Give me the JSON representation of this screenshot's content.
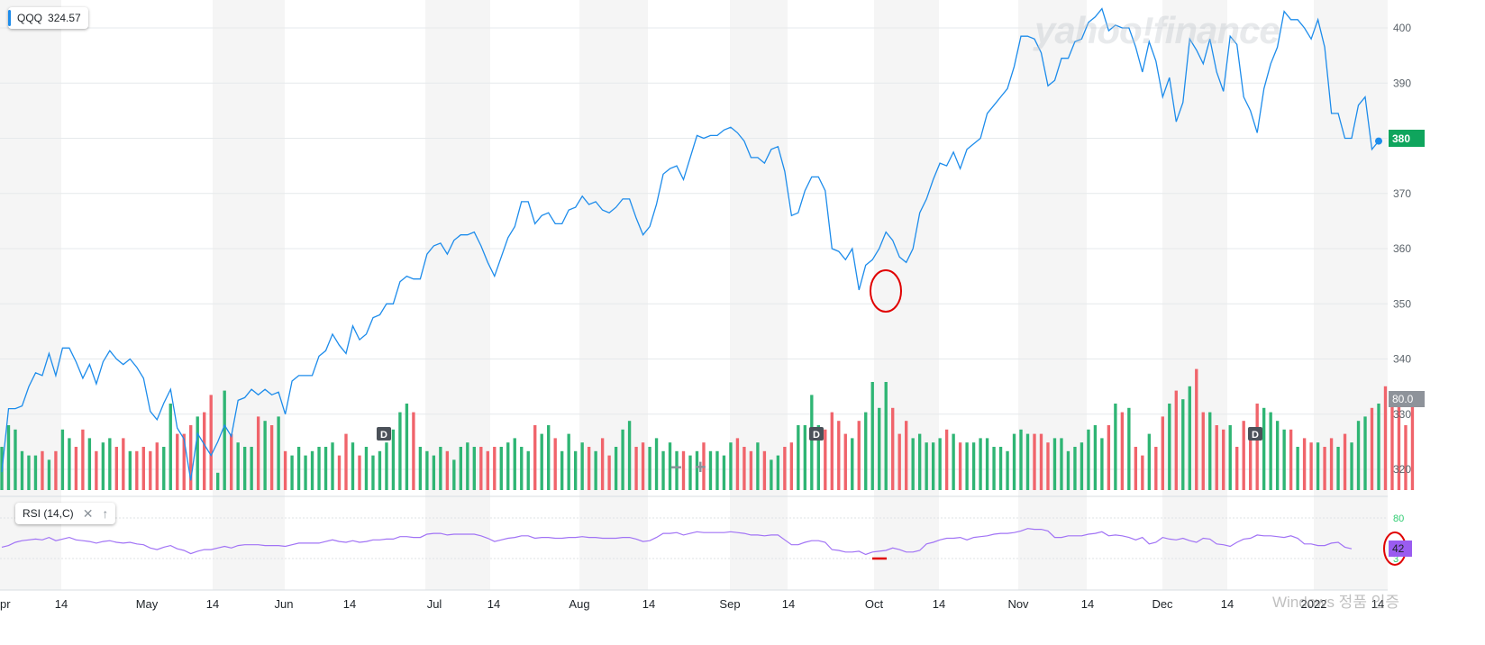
{
  "ticker": {
    "symbol": "QQQ",
    "value": "324.57"
  },
  "rsi_label": "RSI (14,C)",
  "watermark": "yahoo!finance",
  "last_price_label": "380",
  "volume_level_label": "80.0",
  "rsi_last_label": "42",
  "windows_watermark": "Windows 정품 인증",
  "icons": {
    "close": "close-icon",
    "up_arrow": "arrow-up-icon",
    "zoom_out": "minus-icon",
    "zoom_in": "plus-icon"
  },
  "colors": {
    "price_line": "#1d8ceb",
    "vol_up": "#2fb574",
    "vol_down": "#f0646b",
    "rsi_line": "#a173f5",
    "rsi_band": "#2ecc71",
    "last_price_bg": "#0fa55d",
    "annotation": "#e00000"
  },
  "chart_data": {
    "type": "line",
    "title": "",
    "xlabel": "",
    "ylabel": "",
    "ylim": [
      318,
      404
    ],
    "y_ticks": [
      320,
      330,
      340,
      350,
      360,
      370,
      380,
      390,
      400
    ],
    "x_ticks": [
      "pr",
      "14",
      "May",
      "14",
      "Jun",
      "14",
      "Jul",
      "14",
      "Aug",
      "14",
      "Sep",
      "14",
      "Oct",
      "14",
      "Nov",
      "14",
      "Dec",
      "14",
      "2022",
      "14"
    ],
    "series": [
      {
        "values": [
          319.5,
          331,
          331,
          331.5,
          335,
          337.5,
          337,
          341,
          337,
          342,
          342,
          339.5,
          336.5,
          339,
          335.5,
          339.5,
          341.5,
          340,
          339,
          340,
          338.5,
          336.5,
          330.5,
          329,
          332,
          334.5,
          327.5,
          325.5,
          318,
          326.5,
          324.5,
          322.5,
          325,
          328,
          326,
          332.5,
          333,
          334.5,
          333.5,
          334.5,
          333.5,
          334,
          330,
          336,
          337,
          337,
          337,
          340.5,
          341.5,
          344.5,
          342.5,
          341,
          346,
          343.5,
          344.5,
          347.5,
          348,
          350,
          350,
          354,
          355,
          354.5,
          354.5,
          359,
          360.5,
          361,
          359,
          361.5,
          362.5,
          362.5,
          363,
          360.5,
          357.5,
          355,
          358.5,
          362,
          364,
          368.5,
          368.5,
          364.5,
          366,
          366.5,
          364.5,
          364.5,
          367,
          367.5,
          369.5,
          368,
          368.5,
          367,
          366.5,
          367.5,
          369,
          369,
          365.5,
          362.5,
          364,
          368,
          373.5,
          374.5,
          375,
          372.5,
          376.5,
          380.5,
          380,
          380.5,
          380.5,
          381.5,
          382,
          381,
          379.5,
          376.5,
          376.5,
          375.5,
          378,
          378.5,
          374,
          366,
          366.5,
          370.5,
          373,
          373,
          370.5,
          360,
          359.5,
          358,
          360,
          352.5,
          357,
          358,
          360,
          363,
          361.5,
          358.5,
          357.5,
          360,
          366.5,
          369,
          372.5,
          375.5,
          375,
          377.5,
          374.5,
          378,
          379,
          380,
          384.5,
          386,
          387.5,
          389,
          393,
          398.5,
          398.5,
          398,
          395.5,
          389.5,
          390.5,
          394.5,
          394.5,
          397.5,
          398,
          401,
          402,
          403.5,
          399.5,
          400.5,
          400,
          400,
          396.5,
          392,
          397.5,
          394,
          387.5,
          391,
          383,
          386.5,
          398,
          396,
          393.5,
          398,
          392,
          388.5,
          398.5,
          397,
          387.5,
          385,
          381,
          389,
          393.5,
          396.5,
          403,
          401.5,
          401.5,
          400,
          398,
          401.5,
          396.5,
          384.5,
          384.5,
          380,
          380,
          386,
          387.5,
          378,
          379.5
        ]
      },
      {
        "name": "Volume",
        "values": [
          10,
          15,
          14,
          9,
          8,
          8,
          9,
          7,
          9,
          14,
          12,
          10,
          14,
          12,
          9,
          11,
          12,
          10,
          12,
          9,
          9,
          10,
          9,
          11,
          10,
          20,
          13,
          13,
          15,
          17,
          18,
          22,
          4,
          23,
          13,
          11,
          10,
          10,
          17,
          16,
          15,
          17,
          9,
          8,
          10,
          8,
          9,
          10,
          10,
          11,
          8,
          13,
          11,
          8,
          10,
          8,
          9,
          11,
          14,
          18,
          20,
          18,
          10,
          9,
          8,
          10,
          9,
          7,
          10,
          11,
          10,
          10,
          9,
          10,
          10,
          11,
          12,
          10,
          9,
          15,
          13,
          15,
          12,
          9,
          13,
          9,
          11,
          10,
          9,
          12,
          8,
          10,
          14,
          16,
          10,
          11,
          10,
          12,
          9,
          11,
          9,
          9,
          8,
          9,
          11,
          9,
          9,
          8,
          11,
          12,
          10,
          9,
          11,
          9,
          7,
          8,
          10,
          11,
          15,
          15,
          22,
          15,
          14,
          18,
          16,
          13,
          12,
          16,
          18,
          25,
          19,
          25,
          19,
          13,
          16,
          12,
          13,
          11,
          11,
          12,
          14,
          13,
          11,
          11,
          11,
          12,
          12,
          10,
          10,
          9,
          13,
          14,
          13,
          13,
          13,
          11,
          12,
          12,
          9,
          10,
          11,
          14,
          15,
          12,
          15,
          20,
          18,
          19,
          10,
          8,
          13,
          10,
          17,
          20,
          23,
          21,
          24,
          28,
          18,
          18,
          15,
          14,
          15,
          10,
          16,
          14,
          20,
          19,
          18,
          16,
          14,
          14,
          10,
          12,
          11,
          11,
          10,
          12,
          10,
          13,
          11,
          16,
          17,
          19,
          20,
          24,
          20,
          20,
          15,
          20
        ]
      },
      {
        "name": "RSI (14,C)",
        "values": [
          44,
          46,
          50,
          52,
          53,
          54,
          53,
          56,
          52,
          54,
          56,
          53,
          52,
          51,
          49,
          51,
          52,
          50,
          49,
          50,
          48,
          47,
          43,
          41,
          44,
          46,
          42,
          40,
          36,
          39,
          41,
          41,
          43,
          45,
          43,
          46,
          47,
          47,
          47,
          46,
          46,
          46,
          45,
          47,
          49,
          49,
          49,
          49,
          51,
          53,
          51,
          50,
          52,
          50,
          51,
          53,
          53,
          54,
          54,
          57,
          57,
          56,
          56,
          60,
          61,
          61,
          59,
          60,
          60,
          60,
          60,
          58,
          55,
          51,
          53,
          55,
          56,
          58,
          58,
          55,
          56,
          56,
          55,
          55,
          56,
          56,
          57,
          56,
          56,
          55,
          55,
          55,
          56,
          56,
          54,
          51,
          52,
          56,
          61,
          61,
          62,
          59,
          61,
          63,
          62,
          62,
          62,
          62,
          63,
          62,
          61,
          59,
          59,
          58,
          59,
          59,
          53,
          47,
          47,
          50,
          52,
          52,
          50,
          41,
          40,
          38,
          38,
          39,
          35,
          38,
          39,
          40,
          43,
          41,
          38,
          38,
          40,
          48,
          50,
          53,
          55,
          55,
          56,
          53,
          56,
          57,
          58,
          60,
          61,
          61,
          62,
          64,
          67,
          66,
          66,
          64,
          56,
          56,
          58,
          58,
          58,
          60,
          61,
          63,
          58,
          59,
          58,
          56,
          53,
          56,
          48,
          50,
          56,
          54,
          53,
          55,
          52,
          50,
          55,
          54,
          48,
          47,
          45,
          50,
          54,
          55,
          59,
          58,
          58,
          57,
          56,
          58,
          55,
          48,
          48,
          46,
          46,
          49,
          50,
          44,
          42
        ]
      }
    ]
  }
}
